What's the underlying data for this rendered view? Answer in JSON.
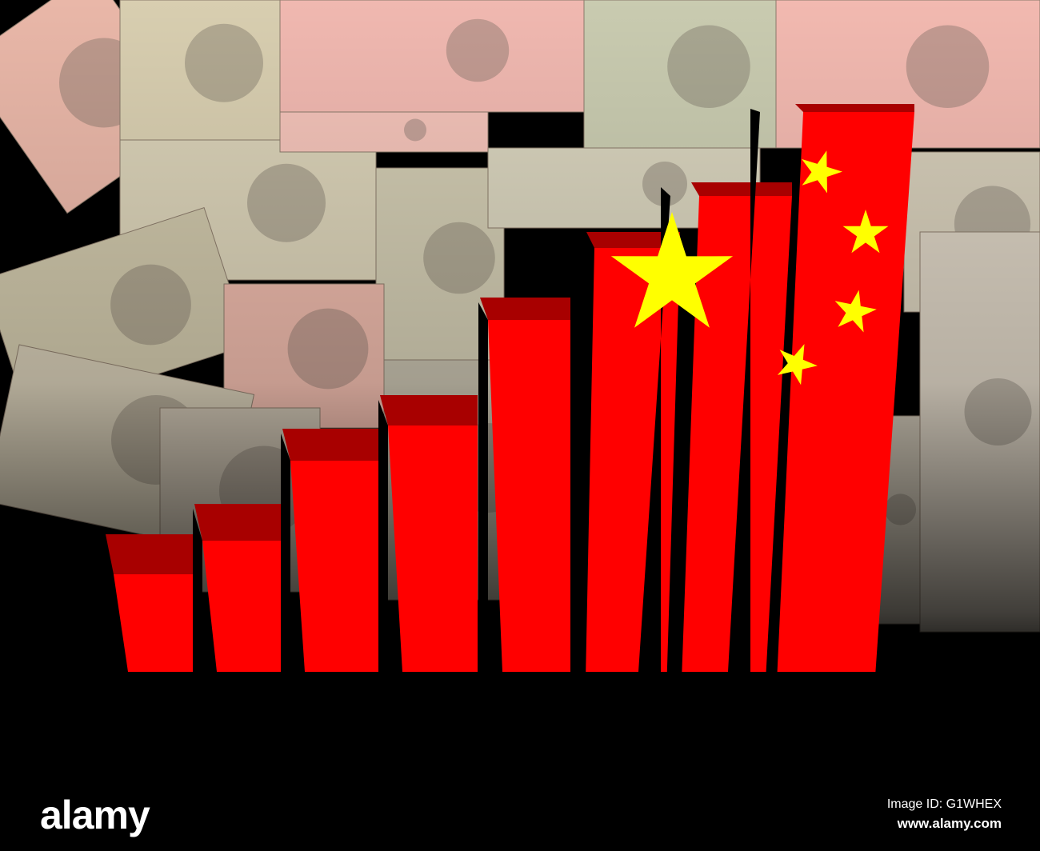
{
  "watermark": {
    "logo": "alamy",
    "image_id": "Image ID: G1WHEX",
    "site": "www.alamy.com"
  },
  "colors": {
    "flag_red": "#ff0000",
    "bar_top": "#a80000",
    "star_yellow": "#ffff00",
    "background": "#000000"
  },
  "scene": {
    "subject": "bar graph in Chinese flag colours over yuan banknotes",
    "bar_count": 8
  }
}
